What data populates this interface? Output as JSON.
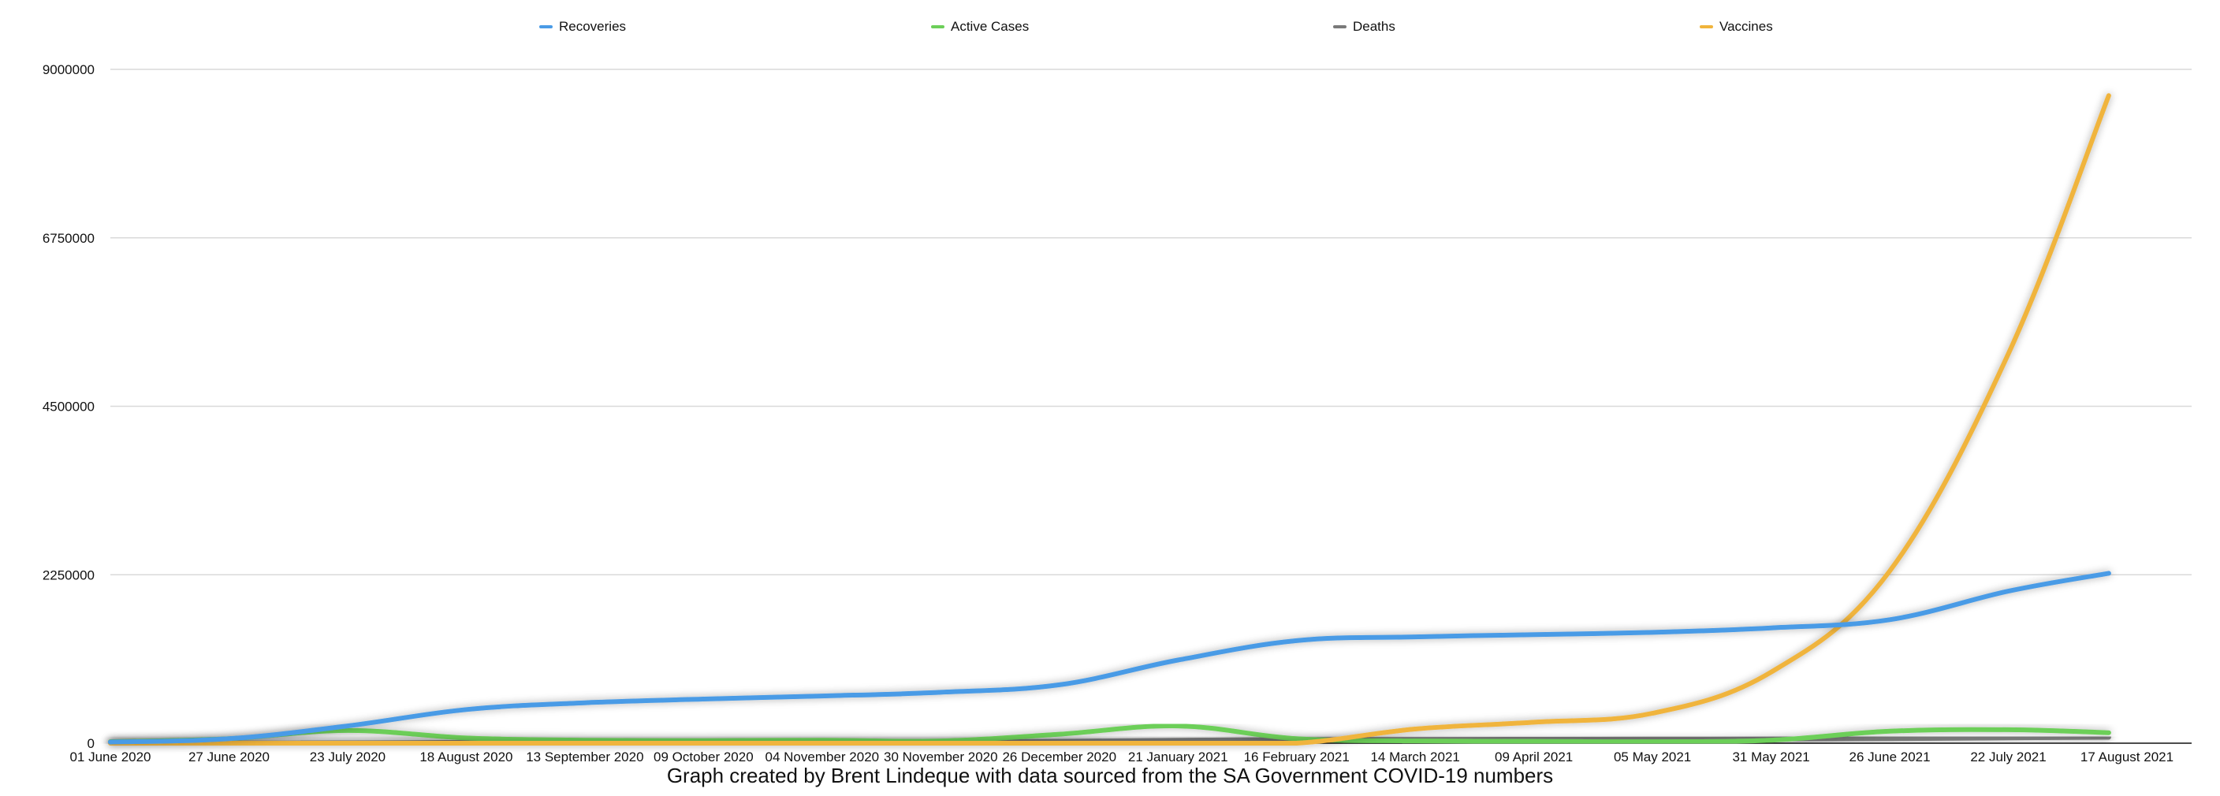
{
  "chart_data": {
    "type": "line",
    "title": "",
    "caption": "Graph created by Brent Lindeque with data sourced from the SA Government COVID-19 numbers",
    "xlabel": "",
    "ylabel": "",
    "ylim": [
      0,
      9000000
    ],
    "y_ticks": [
      "0",
      "2250000",
      "4500000",
      "6750000",
      "9000000"
    ],
    "x_ticks": [
      "01 June 2020",
      "27 June 2020",
      "23 July 2020",
      "18 August 2020",
      "13 September 2020",
      "09 October 2020",
      "04 November 2020",
      "30 November 2020",
      "26 December 2020",
      "21 January 2021",
      "16 February 2021",
      "14 March 2021",
      "09 April 2021",
      "05 May 2021",
      "31 May 2021",
      "26 June 2021",
      "22 July 2021",
      "17 August 2021"
    ],
    "grid": true,
    "legend_position": "top",
    "x": [
      "2020-06-01",
      "2020-06-27",
      "2020-07-23",
      "2020-08-18",
      "2020-09-13",
      "2020-10-09",
      "2020-11-04",
      "2020-11-30",
      "2020-12-26",
      "2021-01-21",
      "2021-02-16",
      "2021-03-14",
      "2021-04-09",
      "2021-05-05",
      "2021-05-31",
      "2021-06-26",
      "2021-07-22",
      "2021-08-13"
    ],
    "series": [
      {
        "name": "Recoveries",
        "color": "#4a9be6",
        "values": [
          15000,
          60000,
          230000,
          450000,
          540000,
          590000,
          630000,
          680000,
          780000,
          1110000,
          1370000,
          1420000,
          1450000,
          1480000,
          1540000,
          1650000,
          2030000,
          2270000
        ]
      },
      {
        "name": "Active Cases",
        "color": "#6ccf59",
        "values": [
          20000,
          60000,
          170000,
          70000,
          40000,
          35000,
          40000,
          30000,
          120000,
          230000,
          60000,
          30000,
          25000,
          20000,
          40000,
          160000,
          180000,
          140000
        ]
      },
      {
        "name": "Deaths",
        "color": "#7a7a7a",
        "values": [
          1000,
          2500,
          5000,
          12000,
          16000,
          18500,
          20000,
          21500,
          26000,
          40000,
          48000,
          51000,
          53000,
          54500,
          56500,
          61000,
          71000,
          79000
        ]
      },
      {
        "name": "Vaccines",
        "color": "#f0b43c",
        "values": [
          0,
          0,
          0,
          0,
          0,
          0,
          0,
          0,
          0,
          0,
          0,
          190000,
          280000,
          400000,
          950000,
          2300000,
          5200000,
          8650000
        ]
      }
    ]
  }
}
